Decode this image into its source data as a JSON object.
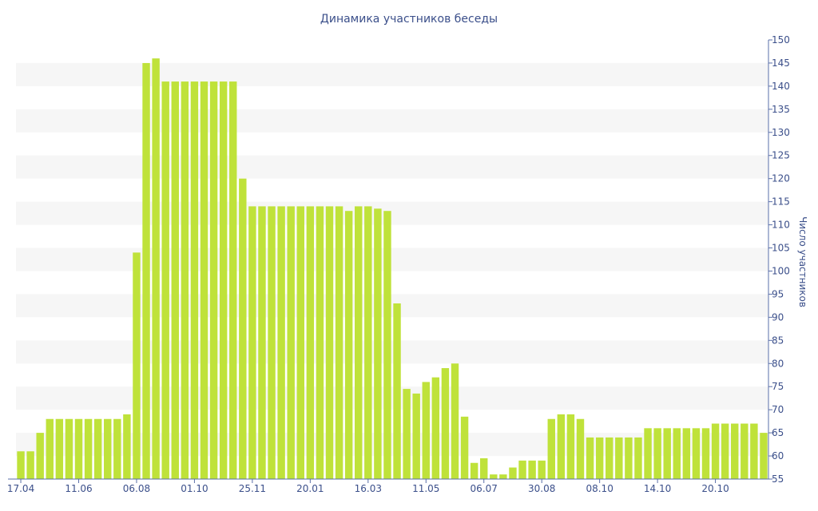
{
  "chart_data": {
    "type": "bar",
    "title": "Динамика участников беседы",
    "xlabel": "",
    "ylabel": "Число участников",
    "ylim": [
      55,
      150
    ],
    "ytick_step": 5,
    "grid": "alternating horizontal bands",
    "bar_color": "#bfe23a",
    "band_color": "#f6f6f6",
    "text_color": "#3b4f8a",
    "axis_color": "#5a6fa8",
    "x_tick_labels": [
      {
        "index": 0,
        "label": "17.04"
      },
      {
        "index": 6,
        "label": "11.06"
      },
      {
        "index": 12,
        "label": "06.08"
      },
      {
        "index": 18,
        "label": "01.10"
      },
      {
        "index": 24,
        "label": "25.11"
      },
      {
        "index": 30,
        "label": "20.01"
      },
      {
        "index": 36,
        "label": "16.03"
      },
      {
        "index": 42,
        "label": "11.05"
      },
      {
        "index": 48,
        "label": "06.07"
      },
      {
        "index": 54,
        "label": "30.08"
      },
      {
        "index": 60,
        "label": "08.10"
      },
      {
        "index": 66,
        "label": "14.10"
      },
      {
        "index": 72,
        "label": "20.10"
      }
    ],
    "values": [
      61,
      61,
      65,
      68,
      68,
      68,
      68,
      68,
      68,
      68,
      68,
      69,
      104,
      145,
      146,
      141,
      141,
      141,
      141,
      141,
      141,
      141,
      141,
      120,
      114,
      114,
      114,
      114,
      114,
      114,
      114,
      114,
      114,
      114,
      113,
      114,
      114,
      113.5,
      113,
      93,
      74.5,
      73.5,
      76,
      77,
      79,
      80,
      68.5,
      58.5,
      59.5,
      56,
      56,
      57.5,
      59,
      59,
      59,
      68,
      69,
      69,
      68,
      64,
      64,
      64,
      64,
      64,
      64,
      66,
      66,
      66,
      66,
      66,
      66,
      66,
      67,
      67,
      67,
      67,
      67,
      65
    ]
  }
}
